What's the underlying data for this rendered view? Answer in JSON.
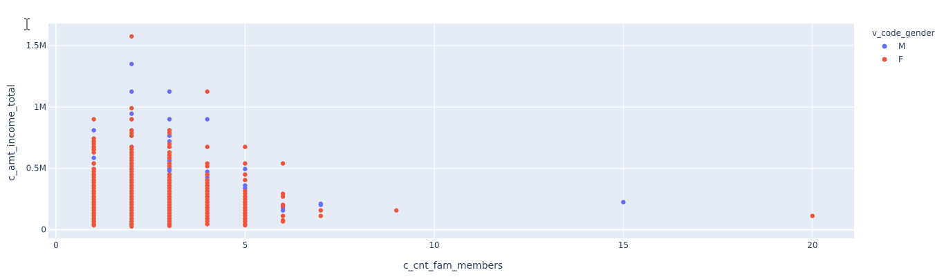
{
  "chart_data": {
    "type": "scatter",
    "xlabel": "c_cnt_fam_members",
    "ylabel": "c_amt_income_total",
    "xlim": [
      -0.2,
      21.1
    ],
    "ylim": [
      -70000,
      1680000
    ],
    "xticks": [
      0,
      5,
      10,
      15,
      20
    ],
    "xtick_labels": [
      "0",
      "5",
      "10",
      "15",
      "20"
    ],
    "yticks": [
      0,
      500000,
      1000000,
      1500000
    ],
    "ytick_labels": [
      "0",
      "0.5M",
      "1M",
      "1.5M"
    ],
    "grid": true,
    "legend_title": "v_code_gender",
    "legend_position": "right",
    "colors": {
      "M": "#636efa",
      "F": "#ef553b"
    },
    "series": [
      {
        "name": "M",
        "points": [
          [
            1,
            810000
          ],
          [
            1,
            675000
          ],
          [
            1,
            585000
          ],
          [
            1,
            540000
          ],
          [
            1,
            495000
          ],
          [
            1,
            450000
          ],
          [
            1,
            405000
          ],
          [
            1,
            360000
          ],
          [
            1,
            315000
          ],
          [
            1,
            270000
          ],
          [
            1,
            225000
          ],
          [
            1,
            180000
          ],
          [
            1,
            135000
          ],
          [
            1,
            90000
          ],
          [
            1,
            67500
          ],
          [
            2,
            1350000
          ],
          [
            2,
            1125000
          ],
          [
            2,
            945000
          ],
          [
            2,
            900000
          ],
          [
            2,
            765000
          ],
          [
            2,
            675000
          ],
          [
            2,
            630000
          ],
          [
            2,
            585000
          ],
          [
            2,
            540000
          ],
          [
            2,
            495000
          ],
          [
            2,
            450000
          ],
          [
            2,
            405000
          ],
          [
            2,
            360000
          ],
          [
            2,
            315000
          ],
          [
            2,
            270000
          ],
          [
            2,
            225000
          ],
          [
            2,
            180000
          ],
          [
            2,
            135000
          ],
          [
            2,
            90000
          ],
          [
            2,
            45000
          ],
          [
            3,
            1125000
          ],
          [
            3,
            900000
          ],
          [
            3,
            810000
          ],
          [
            3,
            765000
          ],
          [
            3,
            720000
          ],
          [
            3,
            675000
          ],
          [
            3,
            630000
          ],
          [
            3,
            562500
          ],
          [
            3,
            540000
          ],
          [
            3,
            495000
          ],
          [
            3,
            480000
          ],
          [
            3,
            450000
          ],
          [
            3,
            405000
          ],
          [
            3,
            360000
          ],
          [
            3,
            315000
          ],
          [
            3,
            270000
          ],
          [
            3,
            225000
          ],
          [
            3,
            180000
          ],
          [
            3,
            135000
          ],
          [
            3,
            90000
          ],
          [
            3,
            45000
          ],
          [
            4,
            900000
          ],
          [
            4,
            472500
          ],
          [
            4,
            450000
          ],
          [
            4,
            427500
          ],
          [
            4,
            405000
          ],
          [
            4,
            360000
          ],
          [
            4,
            315000
          ],
          [
            4,
            270000
          ],
          [
            4,
            225000
          ],
          [
            4,
            180000
          ],
          [
            4,
            135000
          ],
          [
            4,
            90000
          ],
          [
            5,
            495000
          ],
          [
            5,
            360000
          ],
          [
            5,
            337500
          ],
          [
            5,
            270000
          ],
          [
            5,
            225000
          ],
          [
            5,
            180000
          ],
          [
            5,
            135000
          ],
          [
            5,
            90000
          ],
          [
            6,
            180000
          ],
          [
            6,
            157500
          ],
          [
            7,
            211500
          ],
          [
            7,
            202500
          ],
          [
            15,
            225000
          ]
        ]
      },
      {
        "name": "F",
        "points": [
          [
            1,
            900000
          ],
          [
            1,
            742500
          ],
          [
            1,
            720000
          ],
          [
            1,
            697500
          ],
          [
            1,
            675000
          ],
          [
            1,
            652500
          ],
          [
            1,
            630000
          ],
          [
            1,
            540000
          ],
          [
            1,
            495000
          ],
          [
            1,
            472500
          ],
          [
            1,
            450000
          ],
          [
            1,
            427500
          ],
          [
            1,
            405000
          ],
          [
            1,
            382500
          ],
          [
            1,
            360000
          ],
          [
            1,
            337500
          ],
          [
            1,
            315000
          ],
          [
            1,
            292500
          ],
          [
            1,
            270000
          ],
          [
            1,
            247500
          ],
          [
            1,
            225000
          ],
          [
            1,
            202500
          ],
          [
            1,
            180000
          ],
          [
            1,
            157500
          ],
          [
            1,
            135000
          ],
          [
            1,
            112500
          ],
          [
            1,
            90000
          ],
          [
            1,
            67500
          ],
          [
            1,
            45000
          ],
          [
            1,
            36000
          ],
          [
            2,
            1575000
          ],
          [
            2,
            990000
          ],
          [
            2,
            900000
          ],
          [
            2,
            810000
          ],
          [
            2,
            787500
          ],
          [
            2,
            765000
          ],
          [
            2,
            675000
          ],
          [
            2,
            652500
          ],
          [
            2,
            630000
          ],
          [
            2,
            607500
          ],
          [
            2,
            585000
          ],
          [
            2,
            562500
          ],
          [
            2,
            540000
          ],
          [
            2,
            517500
          ],
          [
            2,
            495000
          ],
          [
            2,
            472500
          ],
          [
            2,
            450000
          ],
          [
            2,
            427500
          ],
          [
            2,
            405000
          ],
          [
            2,
            382500
          ],
          [
            2,
            360000
          ],
          [
            2,
            337500
          ],
          [
            2,
            315000
          ],
          [
            2,
            292500
          ],
          [
            2,
            270000
          ],
          [
            2,
            247500
          ],
          [
            2,
            225000
          ],
          [
            2,
            202500
          ],
          [
            2,
            180000
          ],
          [
            2,
            157500
          ],
          [
            2,
            135000
          ],
          [
            2,
            112500
          ],
          [
            2,
            90000
          ],
          [
            2,
            67500
          ],
          [
            2,
            45000
          ],
          [
            2,
            27000
          ],
          [
            3,
            810000
          ],
          [
            3,
            787500
          ],
          [
            3,
            697500
          ],
          [
            3,
            675000
          ],
          [
            3,
            630000
          ],
          [
            3,
            607500
          ],
          [
            3,
            585000
          ],
          [
            3,
            540000
          ],
          [
            3,
            517500
          ],
          [
            3,
            450000
          ],
          [
            3,
            427500
          ],
          [
            3,
            405000
          ],
          [
            3,
            382500
          ],
          [
            3,
            360000
          ],
          [
            3,
            337500
          ],
          [
            3,
            315000
          ],
          [
            3,
            292500
          ],
          [
            3,
            270000
          ],
          [
            3,
            247500
          ],
          [
            3,
            225000
          ],
          [
            3,
            202500
          ],
          [
            3,
            180000
          ],
          [
            3,
            157500
          ],
          [
            3,
            135000
          ],
          [
            3,
            112500
          ],
          [
            3,
            90000
          ],
          [
            3,
            67500
          ],
          [
            3,
            45000
          ],
          [
            3,
            31500
          ],
          [
            4,
            1125000
          ],
          [
            4,
            675000
          ],
          [
            4,
            540000
          ],
          [
            4,
            517500
          ],
          [
            4,
            450000
          ],
          [
            4,
            405000
          ],
          [
            4,
            382500
          ],
          [
            4,
            360000
          ],
          [
            4,
            337500
          ],
          [
            4,
            315000
          ],
          [
            4,
            292500
          ],
          [
            4,
            270000
          ],
          [
            4,
            247500
          ],
          [
            4,
            225000
          ],
          [
            4,
            202500
          ],
          [
            4,
            180000
          ],
          [
            4,
            157500
          ],
          [
            4,
            135000
          ],
          [
            4,
            112500
          ],
          [
            4,
            90000
          ],
          [
            4,
            67500
          ],
          [
            4,
            45000
          ],
          [
            5,
            675000
          ],
          [
            5,
            540000
          ],
          [
            5,
            450000
          ],
          [
            5,
            405000
          ],
          [
            5,
            315000
          ],
          [
            5,
            292500
          ],
          [
            5,
            270000
          ],
          [
            5,
            247500
          ],
          [
            5,
            225000
          ],
          [
            5,
            202500
          ],
          [
            5,
            180000
          ],
          [
            5,
            157500
          ],
          [
            5,
            135000
          ],
          [
            5,
            112500
          ],
          [
            5,
            90000
          ],
          [
            5,
            67500
          ],
          [
            5,
            45000
          ],
          [
            5,
            36000
          ],
          [
            6,
            540000
          ],
          [
            6,
            292500
          ],
          [
            6,
            270000
          ],
          [
            6,
            202500
          ],
          [
            6,
            193500
          ],
          [
            6,
            112500
          ],
          [
            6,
            76500
          ],
          [
            6,
            67500
          ],
          [
            7,
            157500
          ],
          [
            7,
            112500
          ],
          [
            9,
            157500
          ],
          [
            20,
            112500
          ]
        ]
      }
    ]
  }
}
